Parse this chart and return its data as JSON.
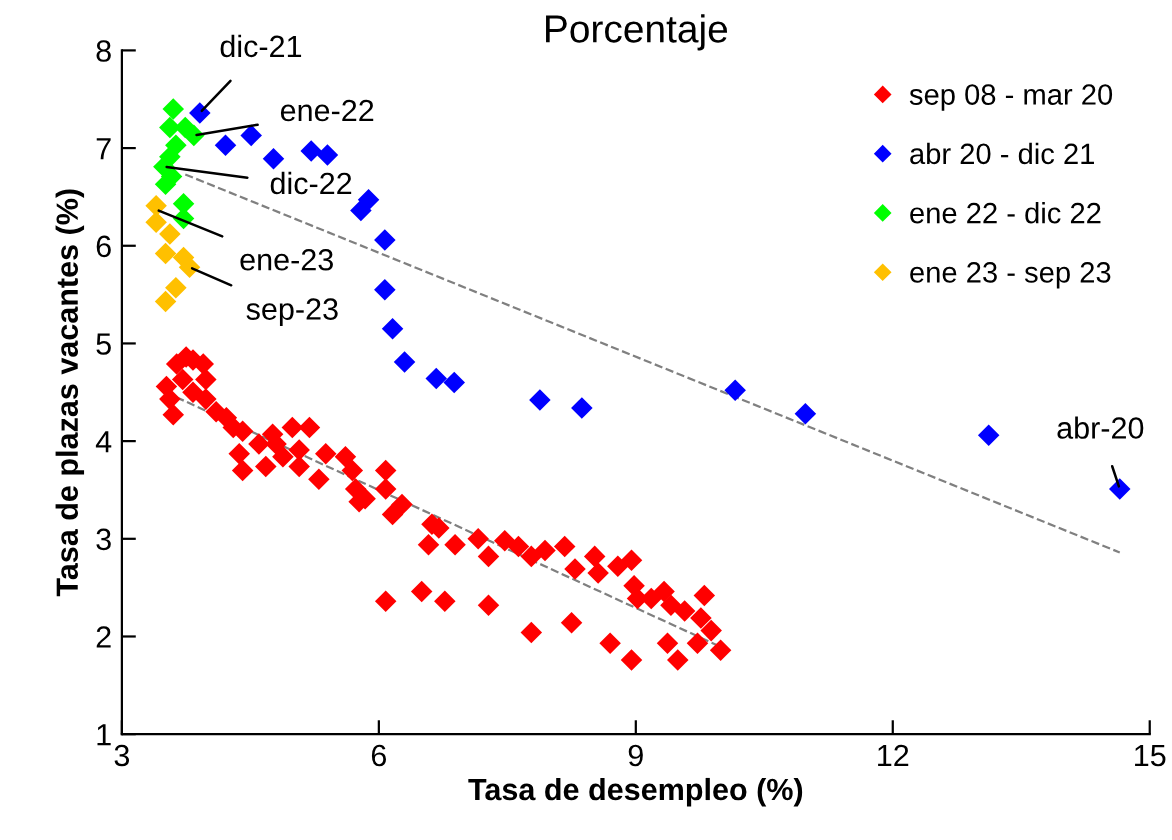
{
  "chart_data": {
    "type": "scatter",
    "title": "Porcentaje",
    "xlabel": "Tasa de desempleo (%)",
    "ylabel": "Tasa de plazas vacantes (%)",
    "xlim": [
      3,
      15
    ],
    "xticks": [
      3,
      6,
      9,
      12,
      15
    ],
    "ylim": [
      1,
      8
    ],
    "yticks": [
      1,
      2,
      3,
      4,
      5,
      6,
      7,
      8
    ],
    "grid": false,
    "legend": "top right",
    "marker": "diamond",
    "series": [
      {
        "name": "sep 08 - mar 20",
        "color": "#ff0000",
        "x": [
          3.52,
          3.64,
          3.75,
          3.83,
          3.95,
          3.98,
          3.71,
          3.56,
          3.6,
          3.83,
          3.98,
          4.1,
          4.22,
          4.3,
          4.41,
          4.37,
          4.41,
          4.6,
          4.76,
          4.8,
          4.68,
          4.88,
          4.99,
          5.19,
          5.07,
          5.07,
          5.3,
          5.38,
          5.61,
          5.69,
          5.73,
          5.84,
          5.77,
          6.08,
          6.08,
          6.16,
          6.27,
          6.62,
          6.7,
          6.58,
          6.89,
          7.16,
          7.28,
          7.47,
          7.63,
          7.78,
          7.94,
          8.17,
          8.29,
          8.52,
          8.56,
          8.79,
          8.95,
          8.98,
          9.02,
          9.18,
          9.33,
          9.41,
          9.57,
          9.8,
          9.76,
          9.37,
          9.49,
          9.72,
          9.88,
          9.99,
          6.08,
          6.5,
          6.77,
          7.28,
          7.78,
          8.25,
          8.7,
          8.95
        ],
        "values": [
          4.56,
          4.79,
          4.86,
          4.83,
          4.79,
          4.63,
          4.63,
          4.43,
          4.27,
          4.5,
          4.43,
          4.3,
          4.24,
          4.14,
          4.1,
          3.87,
          3.7,
          3.97,
          4.07,
          3.97,
          3.74,
          3.84,
          4.14,
          4.14,
          3.91,
          3.74,
          3.61,
          3.87,
          3.84,
          3.7,
          3.51,
          3.41,
          3.38,
          3.7,
          3.51,
          3.25,
          3.35,
          3.15,
          3.11,
          2.94,
          2.94,
          3.0,
          2.82,
          2.98,
          2.92,
          2.82,
          2.88,
          2.92,
          2.69,
          2.82,
          2.65,
          2.72,
          2.78,
          2.52,
          2.39,
          2.39,
          2.46,
          2.32,
          2.26,
          2.42,
          2.19,
          1.93,
          1.76,
          1.93,
          2.06,
          1.86,
          2.36,
          2.46,
          2.36,
          2.32,
          2.04,
          2.14,
          1.93,
          1.76
        ]
      },
      {
        "name": "abr 20 - dic 21",
        "color": "#0000ff",
        "x": [
          3.91,
          4.21,
          4.51,
          4.77,
          5.21,
          5.4,
          5.88,
          5.79,
          6.07,
          6.07,
          6.16,
          6.3,
          6.67,
          6.88,
          7.88,
          8.37,
          10.16,
          10.98,
          13.12,
          14.65
        ],
        "values": [
          7.36,
          7.03,
          7.13,
          6.89,
          6.97,
          6.93,
          6.47,
          6.36,
          6.06,
          5.55,
          5.15,
          4.81,
          4.64,
          4.6,
          4.42,
          4.34,
          4.52,
          4.28,
          4.06,
          3.51
        ]
      },
      {
        "name": "ene 22 - dic 22",
        "color": "#00ff00",
        "x": [
          3.6,
          3.56,
          3.74,
          3.84,
          3.63,
          3.56,
          3.49,
          3.51,
          3.72,
          3.72,
          3.58
        ],
        "values": [
          7.4,
          7.21,
          7.21,
          7.13,
          7.03,
          6.91,
          6.81,
          6.63,
          6.43,
          6.28,
          6.71
        ]
      },
      {
        "name": "ene 23 - sep 23",
        "color": "#ffc000",
        "x": [
          3.4,
          3.4,
          3.56,
          3.51,
          3.72,
          3.79,
          3.63,
          3.51
        ],
        "values": [
          6.41,
          6.24,
          6.12,
          5.92,
          5.88,
          5.78,
          5.57,
          5.43
        ]
      },
      {
        "type": "line",
        "color": "#808080",
        "line_style": "dashed",
        "marker": "none",
        "x": [
          3.74,
          14.65
        ],
        "values": [
          6.73,
          2.86
        ]
      },
      {
        "type": "line",
        "color": "#808080",
        "line_style": "dashed",
        "marker": "none",
        "x": [
          3.51,
          10.0
        ],
        "values": [
          4.5,
          1.89
        ]
      }
    ],
    "annotations": [
      {
        "text": "dic-21",
        "x": 3.91,
        "y": 7.36
      },
      {
        "text": "ene-22",
        "x": 3.84,
        "y": 7.13
      },
      {
        "text": "dic-22",
        "x": 3.49,
        "y": 6.81
      },
      {
        "text": "ene-23",
        "x": 3.4,
        "y": 6.37
      },
      {
        "text": "sep-23",
        "x": 3.79,
        "y": 5.78
      },
      {
        "text": "abr-20",
        "x": 14.65,
        "y": 3.51
      }
    ]
  }
}
